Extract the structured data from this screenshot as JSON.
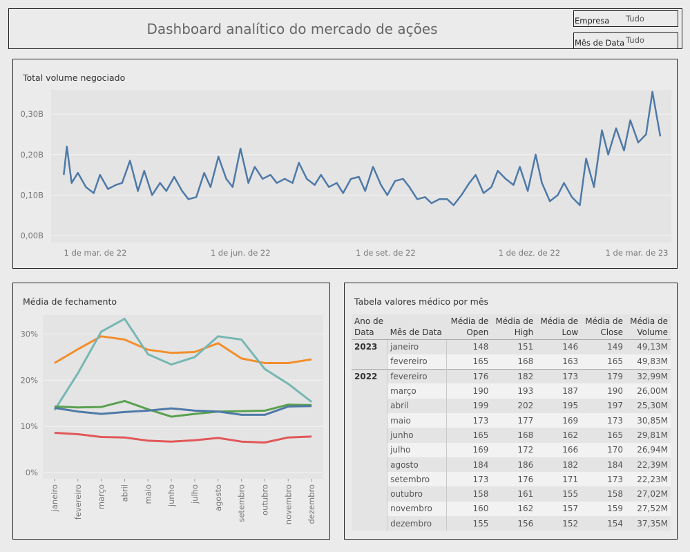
{
  "header": {
    "title": "Dashboard analítico do mercado de ações"
  },
  "filters": [
    {
      "label": "Empresa",
      "value": "Tudo"
    },
    {
      "label": "Mês de Data",
      "value": "Tudo"
    }
  ],
  "chart_data": [
    {
      "type": "line",
      "title": "Total volume negociado",
      "y_ticks": [
        "0,00B",
        "0,10B",
        "0,20B",
        "0,30B"
      ],
      "x_ticks": [
        "1 de mar. de 22",
        "1 de jun. de 22",
        "1 de set. de 22",
        "1 de dez. de 22",
        "1 de mar. de 23"
      ],
      "ylim": [
        0,
        0.36
      ],
      "xlim": [
        "2022-02-01",
        "2023-03-01"
      ],
      "grid": true,
      "series": [
        {
          "color": "#4e79a7",
          "x": [
            "2022-02-09",
            "2022-02-11",
            "2022-02-14",
            "2022-02-18",
            "2022-02-23",
            "2022-02-28",
            "2022-03-04",
            "2022-03-09",
            "2022-03-14",
            "2022-03-18",
            "2022-03-23",
            "2022-03-28",
            "2022-04-01",
            "2022-04-06",
            "2022-04-11",
            "2022-04-15",
            "2022-04-20",
            "2022-04-25",
            "2022-04-29",
            "2022-05-04",
            "2022-05-09",
            "2022-05-13",
            "2022-05-18",
            "2022-05-23",
            "2022-05-27",
            "2022-06-01",
            "2022-06-06",
            "2022-06-10",
            "2022-06-15",
            "2022-06-20",
            "2022-06-24",
            "2022-06-29",
            "2022-07-04",
            "2022-07-08",
            "2022-07-13",
            "2022-07-18",
            "2022-07-22",
            "2022-07-27",
            "2022-08-01",
            "2022-08-05",
            "2022-08-10",
            "2022-08-15",
            "2022-08-19",
            "2022-08-24",
            "2022-08-29",
            "2022-09-02",
            "2022-09-07",
            "2022-09-12",
            "2022-09-16",
            "2022-09-21",
            "2022-09-26",
            "2022-09-30",
            "2022-10-05",
            "2022-10-10",
            "2022-10-14",
            "2022-10-19",
            "2022-10-24",
            "2022-10-28",
            "2022-11-02",
            "2022-11-07",
            "2022-11-11",
            "2022-11-16",
            "2022-11-21",
            "2022-11-25",
            "2022-11-30",
            "2022-12-05",
            "2022-12-09",
            "2022-12-14",
            "2022-12-19",
            "2022-12-23",
            "2022-12-28",
            "2023-01-02",
            "2023-01-06",
            "2023-01-11",
            "2023-01-16",
            "2023-01-20",
            "2023-01-25",
            "2023-01-30",
            "2023-02-03",
            "2023-02-08",
            "2023-02-13",
            "2023-02-17",
            "2023-02-22"
          ],
          "values": [
            0.15,
            0.22,
            0.13,
            0.155,
            0.12,
            0.105,
            0.15,
            0.115,
            0.125,
            0.13,
            0.185,
            0.11,
            0.16,
            0.1,
            0.13,
            0.11,
            0.145,
            0.11,
            0.09,
            0.095,
            0.155,
            0.12,
            0.195,
            0.14,
            0.12,
            0.215,
            0.13,
            0.17,
            0.14,
            0.15,
            0.13,
            0.14,
            0.13,
            0.18,
            0.14,
            0.125,
            0.15,
            0.12,
            0.13,
            0.105,
            0.14,
            0.145,
            0.11,
            0.17,
            0.125,
            0.1,
            0.135,
            0.14,
            0.12,
            0.09,
            0.095,
            0.08,
            0.09,
            0.09,
            0.075,
            0.1,
            0.13,
            0.15,
            0.105,
            0.12,
            0.16,
            0.14,
            0.125,
            0.17,
            0.11,
            0.2,
            0.13,
            0.085,
            0.1,
            0.13,
            0.095,
            0.075,
            0.19,
            0.12,
            0.26,
            0.2,
            0.265,
            0.21,
            0.285,
            0.23,
            0.25,
            0.355,
            0.245
          ]
        }
      ]
    },
    {
      "type": "line",
      "title": "Média de fechamento",
      "categories": [
        "janeiro",
        "fevereiro",
        "março",
        "abril",
        "maio",
        "junho",
        "julho",
        "agosto",
        "setembro",
        "outubro",
        "novembro",
        "dezembro"
      ],
      "y_ticks": [
        "0%",
        "10%",
        "20%",
        "30%"
      ],
      "ylim": [
        0,
        35
      ],
      "grid": true,
      "series": [
        {
          "color": "#f28e2b",
          "values": [
            23.7,
            26.7,
            29.5,
            28.8,
            26.6,
            25.9,
            26.1,
            28.0,
            24.7,
            23.7,
            23.7,
            24.5
          ]
        },
        {
          "color": "#76b7b2",
          "values": [
            13.5,
            21.5,
            30.5,
            33.3,
            25.6,
            23.4,
            25.0,
            29.5,
            28.8,
            22.4,
            19.2,
            15.3
          ]
        },
        {
          "color": "#59a14f",
          "values": [
            14.3,
            14.1,
            14.2,
            15.5,
            13.7,
            12.1,
            12.7,
            13.2,
            13.3,
            13.4,
            14.7,
            14.6
          ]
        },
        {
          "color": "#4e79a7",
          "values": [
            14.0,
            13.2,
            12.7,
            13.1,
            13.4,
            13.9,
            13.4,
            13.2,
            12.5,
            12.5,
            14.3,
            14.4
          ]
        },
        {
          "color": "#e15759",
          "values": [
            8.6,
            8.3,
            7.7,
            7.6,
            6.9,
            6.7,
            7.0,
            7.5,
            6.7,
            6.5,
            7.6,
            7.8
          ]
        }
      ]
    }
  ],
  "table": {
    "title": "Tabela valores médico por mês",
    "headers": [
      "Ano de\nData",
      "Mês de Data",
      "Média de\nOpen",
      "Média de\nHigh",
      "Média de\nLow",
      "Média de\nClose",
      "Média de\nVolume"
    ],
    "groups": [
      {
        "year": "2023",
        "rows": [
          [
            "janeiro",
            "148",
            "151",
            "146",
            "149",
            "49,13M"
          ],
          [
            "fevereiro",
            "165",
            "168",
            "163",
            "165",
            "49,83M"
          ]
        ]
      },
      {
        "year": "2022",
        "rows": [
          [
            "fevereiro",
            "176",
            "182",
            "173",
            "179",
            "32,99M"
          ],
          [
            "março",
            "190",
            "193",
            "187",
            "190",
            "26,00M"
          ],
          [
            "abril",
            "199",
            "202",
            "195",
            "197",
            "25,30M"
          ],
          [
            "maio",
            "173",
            "177",
            "169",
            "173",
            "30,85M"
          ],
          [
            "junho",
            "165",
            "168",
            "162",
            "165",
            "29,81M"
          ],
          [
            "julho",
            "169",
            "172",
            "166",
            "170",
            "26,94M"
          ],
          [
            "agosto",
            "184",
            "186",
            "182",
            "184",
            "22,39M"
          ],
          [
            "setembro",
            "173",
            "176",
            "171",
            "173",
            "22,23M"
          ],
          [
            "outubro",
            "158",
            "161",
            "155",
            "158",
            "27,02M"
          ],
          [
            "novembro",
            "160",
            "162",
            "157",
            "159",
            "27,52M"
          ],
          [
            "dezembro",
            "155",
            "156",
            "152",
            "154",
            "37,35M"
          ]
        ]
      }
    ]
  }
}
